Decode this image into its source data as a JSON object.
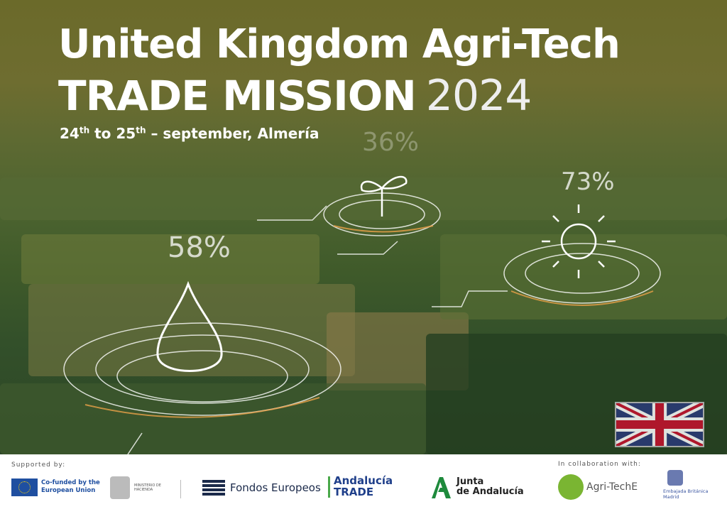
{
  "title": {
    "line1": "United Kingdom Agri-Tech",
    "line2": "TRADE MISSION",
    "year": "2024"
  },
  "date": {
    "day1": "24",
    "sup1": "th",
    "to": "to",
    "day2": "25",
    "sup2": "th",
    "rest": "– september, Almería"
  },
  "indicators": {
    "water": "58%",
    "plant": "36%",
    "sun": "73%"
  },
  "footer": {
    "supported_by": "Supported by:",
    "eu": "Co-funded by the European Union",
    "ministerio": "MINISTERIO DE HACIENDA",
    "fondos": "Fondos Europeos",
    "andalucia_trade_1": "Andalucía",
    "andalucia_trade_2": "TRADE",
    "junta_1": "Junta",
    "junta_2": "de Andalucía",
    "collab": "In collaboration with:",
    "agritech": "Agri-TechE",
    "embajada_1": "Embajada Británica",
    "embajada_2": "Madrid"
  },
  "colors": {
    "eu_blue": "#1f4fa0",
    "andalucia_green": "#1e8a3c",
    "agritech_green": "#7ab532",
    "navy": "#1b2a4a"
  }
}
